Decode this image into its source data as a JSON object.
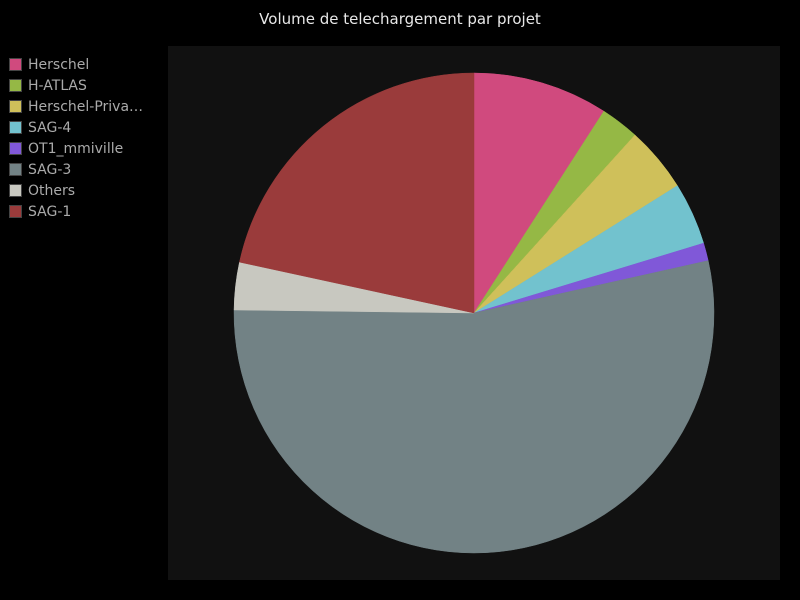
{
  "chart_data": {
    "type": "pie",
    "title": "Volume de telechargement par projet",
    "legend_position": "top-left",
    "start_angle": "top, clockwise",
    "slices": [
      {
        "label": "Herschel",
        "value": 9.1,
        "color": "#d04a7e"
      },
      {
        "label": "H-ATLAS",
        "value": 2.6,
        "color": "#95b845"
      },
      {
        "label": "Herschel-Priva…",
        "value": 4.4,
        "color": "#cfc05a"
      },
      {
        "label": "SAG-4",
        "value": 4.2,
        "color": "#72c2ce"
      },
      {
        "label": "OT1_mmiville",
        "value": 1.2,
        "color": "#8058d8"
      },
      {
        "label": "SAG-3",
        "value": 53.7,
        "color": "#728285"
      },
      {
        "label": "Others",
        "value": 3.2,
        "color": "#c8c8c0"
      },
      {
        "label": "SAG-1",
        "value": 21.6,
        "color": "#9a3b3b"
      }
    ]
  }
}
